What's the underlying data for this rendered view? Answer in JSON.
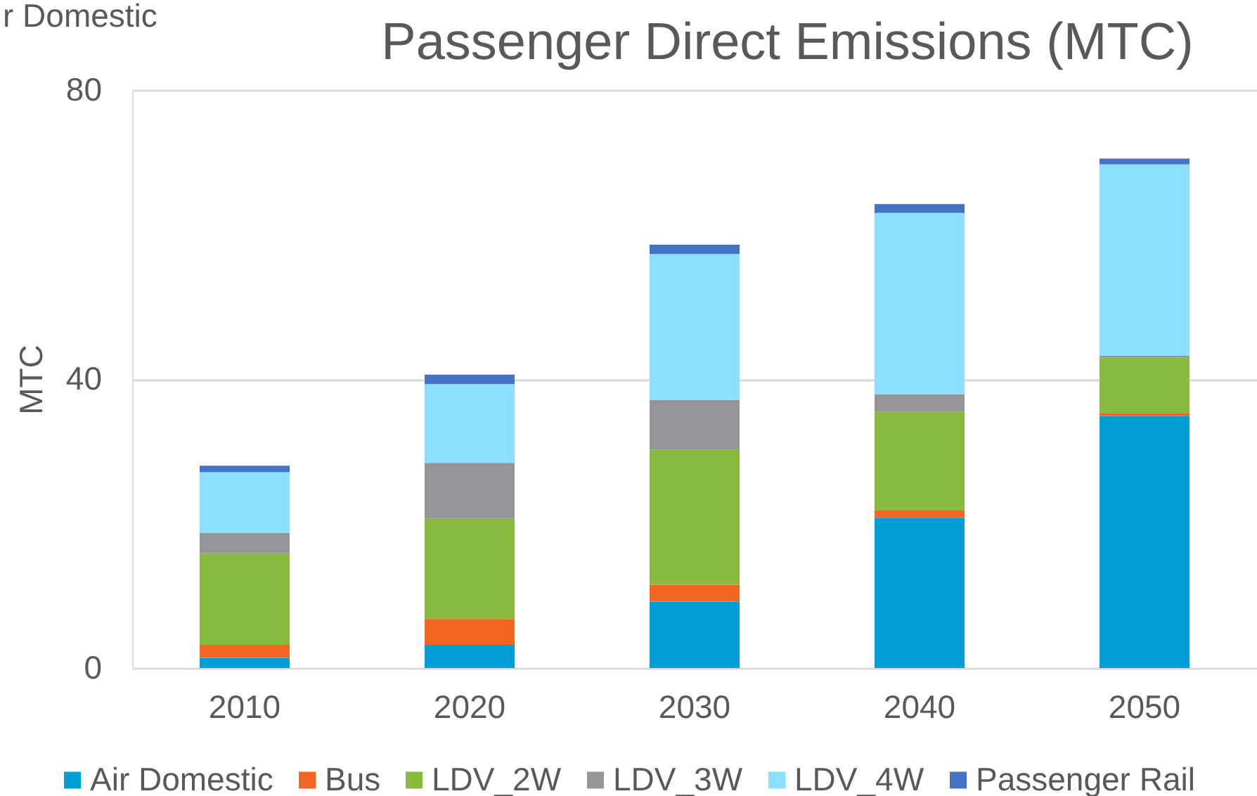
{
  "chart_data": {
    "type": "bar",
    "title": "Passenger Direct Emissions (MTC)",
    "ylabel": "MTC",
    "categories": [
      "2010",
      "2020",
      "2030",
      "2040",
      "2050"
    ],
    "stacked": true,
    "ylim": [
      0,
      80
    ],
    "yticks": [
      0,
      40,
      80
    ],
    "grid": "y",
    "legend": "bottom",
    "annotations": [
      "r Domestic"
    ],
    "series": [
      {
        "name": "Air Domestic",
        "color": "#009ed8",
        "values": [
          1.4,
          3.2,
          9.2,
          20.8,
          34.9
        ]
      },
      {
        "name": "Bus",
        "color": "#f26522",
        "values": [
          1.8,
          3.6,
          2.3,
          1.0,
          0.4
        ]
      },
      {
        "name": "LDV_2W",
        "color": "#8aba3f",
        "values": [
          12.7,
          13.9,
          18.7,
          13.7,
          7.7
        ]
      },
      {
        "name": "LDV_3W",
        "color": "#939598",
        "values": [
          2.8,
          7.7,
          6.9,
          2.4,
          0.2
        ]
      },
      {
        "name": "LDV_4W",
        "color": "#8bdfff",
        "values": [
          8.4,
          10.9,
          20.2,
          25.1,
          26.5
        ]
      },
      {
        "name": "Passenger Rail",
        "color": "#4472c4",
        "values": [
          0.9,
          1.3,
          1.3,
          1.2,
          0.8
        ]
      }
    ]
  }
}
